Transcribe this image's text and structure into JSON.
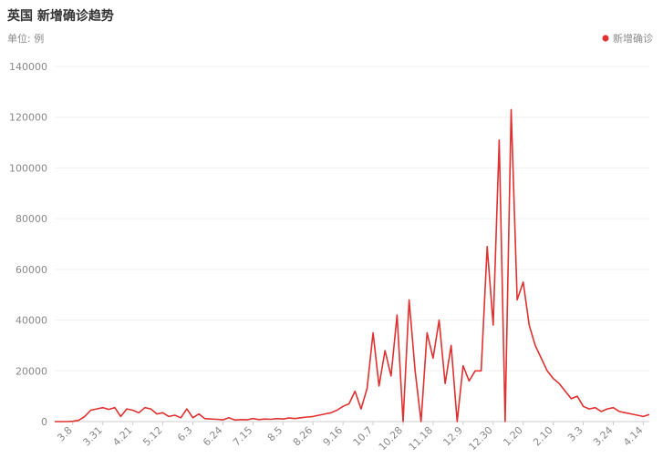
{
  "chart_data": {
    "type": "line",
    "title": "英国 新增确诊趋势",
    "subtitle": "单位: 例",
    "categories": [
      null,
      null,
      null,
      "3.8",
      null,
      null,
      null,
      null,
      "3.31",
      null,
      null,
      null,
      null,
      "4.21",
      null,
      null,
      null,
      null,
      "5.12",
      null,
      null,
      null,
      null,
      "6.3",
      null,
      null,
      null,
      null,
      "6.24",
      null,
      null,
      null,
      null,
      "7.15",
      null,
      null,
      null,
      null,
      "8.5",
      null,
      null,
      null,
      null,
      "8.26",
      null,
      null,
      null,
      null,
      "9.16",
      null,
      null,
      null,
      null,
      "10.7",
      null,
      null,
      null,
      null,
      "10.28",
      null,
      null,
      null,
      null,
      "11.18",
      null,
      null,
      null,
      null,
      "12.9",
      null,
      null,
      null,
      null,
      "12.30",
      null,
      null,
      null,
      null,
      "1.20",
      null,
      null,
      null,
      null,
      "2.10",
      null,
      null,
      null,
      null,
      "3.3",
      null,
      null,
      null,
      null,
      "3.24",
      null,
      null,
      null,
      null,
      "4.14",
      null
    ],
    "series": [
      {
        "name": "新增确诊",
        "color": "#e03030",
        "values": [
          0,
          0,
          0,
          100,
          500,
          2000,
          4500,
          5000,
          5500,
          4800,
          5500,
          2000,
          5000,
          4500,
          3500,
          5500,
          5000,
          3000,
          3500,
          2000,
          2500,
          1500,
          5000,
          1500,
          3000,
          1200,
          1000,
          900,
          700,
          1500,
          600,
          800,
          700,
          1200,
          800,
          1000,
          900,
          1200,
          1000,
          1400,
          1200,
          1500,
          1800,
          2000,
          2500,
          3000,
          3500,
          4500,
          6000,
          7000,
          12000,
          5000,
          13000,
          35000,
          14000,
          28000,
          18000,
          42000,
          0,
          48000,
          20000,
          0,
          35000,
          25000,
          40000,
          15000,
          30000,
          0,
          22000,
          16000,
          20000,
          20000,
          69000,
          38000,
          111000,
          0,
          123000,
          48000,
          55000,
          38000,
          30000,
          25000,
          20000,
          17000,
          15000,
          12000,
          9000,
          10000,
          6000,
          5000,
          5500,
          4000,
          5000,
          5500,
          4000,
          3500,
          3000,
          2500,
          2000,
          2800
        ]
      }
    ],
    "ylim": [
      0,
      140000
    ],
    "yticks": [
      0,
      20000,
      40000,
      60000,
      80000,
      100000,
      120000,
      140000
    ],
    "grid": true,
    "legend": "top-right"
  }
}
